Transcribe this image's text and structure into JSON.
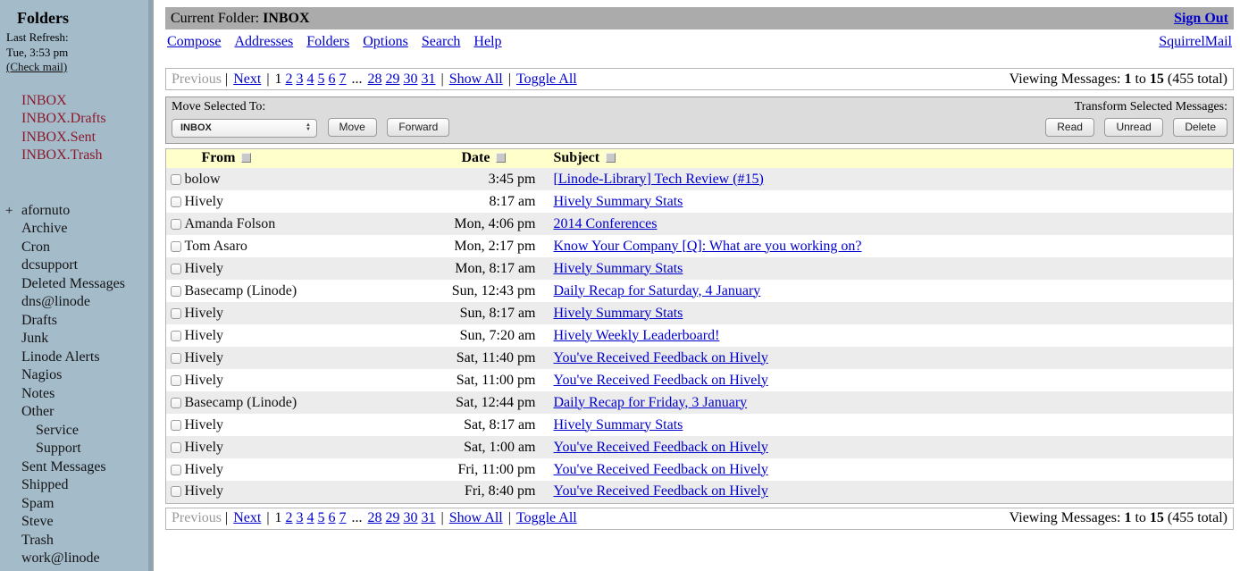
{
  "colors": {
    "link_blue": "#0000cc",
    "sidebar_bg": "#a4bbca",
    "special_folder_red": "#8b1b2c",
    "titlebar_gray": "#ababab",
    "table_header_yellow": "#ffffcc",
    "row_alt_gray": "#ececec",
    "toolbar_gray": "#dcdcdc"
  },
  "sidebar": {
    "title": "Folders",
    "last_refresh_label": "Last Refresh:",
    "last_refresh_time": "Tue, 3:53 pm",
    "check_mail": "(Check mail)",
    "folders": [
      {
        "label": "INBOX",
        "special": true,
        "indent": 1
      },
      {
        "label": "INBOX.Drafts",
        "special": true,
        "indent": 1
      },
      {
        "label": "INBOX.Sent",
        "special": true,
        "indent": 1
      },
      {
        "label": "INBOX.Trash",
        "special": true,
        "indent": 1
      },
      {
        "label": "afornuto",
        "prefix": "+",
        "indent": 1,
        "gap_before": true
      },
      {
        "label": "Archive",
        "indent": 1
      },
      {
        "label": "Cron",
        "indent": 1
      },
      {
        "label": "dcsupport",
        "indent": 1
      },
      {
        "label": "Deleted Messages",
        "indent": 1
      },
      {
        "label": "dns@linode",
        "indent": 1
      },
      {
        "label": "Drafts",
        "indent": 1
      },
      {
        "label": "Junk",
        "indent": 1
      },
      {
        "label": "Linode Alerts",
        "indent": 1
      },
      {
        "label": "Nagios",
        "indent": 1
      },
      {
        "label": "Notes",
        "indent": 1
      },
      {
        "label": "Other",
        "indent": 1
      },
      {
        "label": "Service",
        "indent": 2
      },
      {
        "label": "Support",
        "indent": 2
      },
      {
        "label": "Sent Messages",
        "indent": 1
      },
      {
        "label": "Shipped",
        "indent": 1
      },
      {
        "label": "Spam",
        "indent": 1
      },
      {
        "label": "Steve",
        "indent": 1
      },
      {
        "label": "Trash",
        "indent": 1
      },
      {
        "label": "work@linode",
        "indent": 1
      }
    ]
  },
  "header": {
    "current_folder_label": "Current Folder:",
    "current_folder": "INBOX",
    "sign_out": "Sign Out",
    "nav": [
      "Compose",
      "Addresses",
      "Folders",
      "Options",
      "Search",
      "Help"
    ],
    "brand": "SquirrelMail"
  },
  "pagination": {
    "previous": "Previous",
    "next": "Next",
    "current_page": "1",
    "pages_start": [
      "2",
      "3",
      "4",
      "5",
      "6",
      "7"
    ],
    "ellipsis": "...",
    "pages_end": [
      "28",
      "29",
      "30",
      "31"
    ],
    "show_all": "Show All",
    "toggle_all": "Toggle All",
    "separator": "|",
    "viewing_label": "Viewing Messages:",
    "viewing_from": "1",
    "viewing_to_word": "to",
    "viewing_to": "15",
    "viewing_total": "(455 total)"
  },
  "toolbar": {
    "move_label": "Move Selected To:",
    "move_select_value": "INBOX",
    "move_button": "Move",
    "forward_button": "Forward",
    "transform_label": "Transform Selected Messages:",
    "read_button": "Read",
    "unread_button": "Unread",
    "delete_button": "Delete"
  },
  "messages": {
    "columns": {
      "from": "From",
      "date": "Date",
      "subject": "Subject"
    },
    "rows": [
      {
        "from": "bolow",
        "date": "3:45 pm",
        "subject": "[Linode-Library] Tech Review (#15)"
      },
      {
        "from": "Hively",
        "date": "8:17 am",
        "subject": "Hively Summary Stats"
      },
      {
        "from": "Amanda Folson",
        "date": "Mon, 4:06 pm",
        "subject": "2014 Conferences"
      },
      {
        "from": "Tom Asaro",
        "date": "Mon, 2:17 pm",
        "subject": "Know Your Company [Q]: What are you working on?"
      },
      {
        "from": "Hively",
        "date": "Mon, 8:17 am",
        "subject": "Hively Summary Stats"
      },
      {
        "from": "Basecamp (Linode)",
        "date": "Sun, 12:43 pm",
        "subject": "Daily Recap for Saturday, 4 January"
      },
      {
        "from": "Hively",
        "date": "Sun, 8:17 am",
        "subject": "Hively Summary Stats"
      },
      {
        "from": "Hively",
        "date": "Sun, 7:20 am",
        "subject": "Hively Weekly Leaderboard!"
      },
      {
        "from": "Hively",
        "date": "Sat, 11:40 pm",
        "subject": "You've Received Feedback on Hively"
      },
      {
        "from": "Hively",
        "date": "Sat, 11:00 pm",
        "subject": "You've Received Feedback on Hively"
      },
      {
        "from": "Basecamp (Linode)",
        "date": "Sat, 12:44 pm",
        "subject": "Daily Recap for Friday, 3 January"
      },
      {
        "from": "Hively",
        "date": "Sat, 8:17 am",
        "subject": "Hively Summary Stats"
      },
      {
        "from": "Hively",
        "date": "Sat, 1:00 am",
        "subject": "You've Received Feedback on Hively"
      },
      {
        "from": "Hively",
        "date": "Fri, 11:00 pm",
        "subject": "You've Received Feedback on Hively"
      },
      {
        "from": "Hively",
        "date": "Fri, 8:40 pm",
        "subject": "You've Received Feedback on Hively"
      }
    ]
  }
}
